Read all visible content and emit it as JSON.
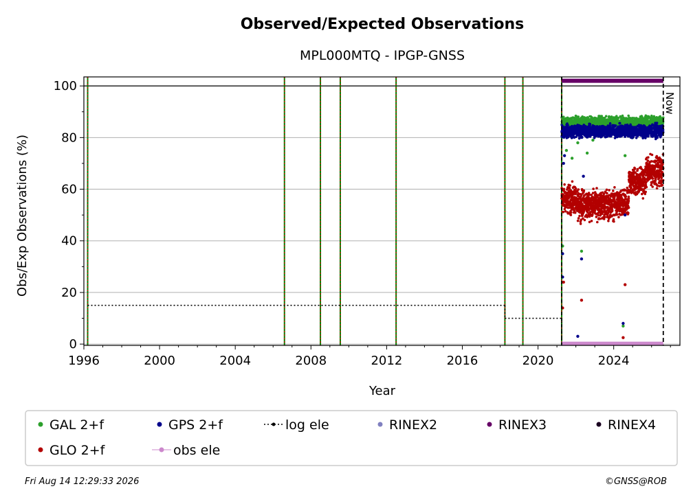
{
  "chart_data": {
    "type": "scatter",
    "title": "Observed/Expected Observations",
    "subtitle": "MPL000MTQ - IPGP-GNSS",
    "xlabel": "Year",
    "ylabel": "Obs/Exp Observations (%)",
    "xlim": [
      1996.0,
      2027.5
    ],
    "ylim": [
      -0.5,
      103.5
    ],
    "x_ticks": [
      "1996",
      "2000",
      "2004",
      "2008",
      "2012",
      "2016",
      "2020",
      "2024"
    ],
    "x_tick_values": [
      1996,
      2000,
      2004,
      2008,
      2012,
      2016,
      2020,
      2024
    ],
    "y_ticks": [
      "0",
      "20",
      "40",
      "60",
      "80",
      "100"
    ],
    "y_tick_values": [
      0,
      20,
      40,
      60,
      80,
      100
    ],
    "grid": "horizontal",
    "reference_line_y": 100,
    "now_label": "Now",
    "now_x": 2026.62,
    "data_start_x": 2021.25,
    "event_lines_x": [
      1996.2,
      2006.6,
      2008.5,
      2009.55,
      2012.5,
      2018.25,
      2019.2,
      2021.25
    ],
    "log_ele": [
      {
        "x_start": 1996.2,
        "x_end": 2018.25,
        "y": 15
      },
      {
        "x_start": 2018.25,
        "x_end": 2021.25,
        "y": 10
      },
      {
        "x_start": 2021.25,
        "x_end": 2021.25,
        "y": 0
      }
    ],
    "rinex3_bar": {
      "x_start": 2021.25,
      "x_end": 2026.62,
      "y": 102
    },
    "obs_ele_bar": {
      "x_start": 2021.25,
      "x_end": 2026.62,
      "y": 0
    },
    "series": [
      {
        "name": "GAL 2+f",
        "color": "#2ca02c",
        "segments": [
          {
            "x_start": 2021.25,
            "x_end": 2026.62,
            "mean": 86,
            "spread": 1.5
          }
        ],
        "dips": [
          [
            2021.3,
            38
          ],
          [
            2021.5,
            75
          ],
          [
            2021.8,
            72
          ],
          [
            2022.1,
            78
          ],
          [
            2022.3,
            36
          ],
          [
            2022.6,
            74
          ],
          [
            2022.9,
            79
          ],
          [
            2024.5,
            7
          ],
          [
            2024.6,
            73
          ],
          [
            2025.0,
            80
          ]
        ]
      },
      {
        "name": "GPS 2+f",
        "color": "#00008b",
        "segments": [
          {
            "x_start": 2021.25,
            "x_end": 2026.62,
            "mean": 82.5,
            "spread": 1.8
          }
        ],
        "dips": [
          [
            2021.3,
            26
          ],
          [
            2021.3,
            35
          ],
          [
            2021.35,
            70
          ],
          [
            2021.4,
            73
          ],
          [
            2022.1,
            3
          ],
          [
            2022.3,
            33
          ],
          [
            2022.4,
            65
          ],
          [
            2024.5,
            8
          ],
          [
            2024.6,
            50
          ]
        ]
      },
      {
        "name": "GLO 2+f",
        "color": "#b30000",
        "segments": [
          {
            "x_start": 2021.25,
            "x_end": 2022.0,
            "mean": 56,
            "spread": 4
          },
          {
            "x_start": 2022.0,
            "x_end": 2024.8,
            "mean": 54,
            "spread": 4
          },
          {
            "x_start": 2024.8,
            "x_end": 2025.7,
            "mean": 63,
            "spread": 4
          },
          {
            "x_start": 2025.7,
            "x_end": 2026.62,
            "mean": 67,
            "spread": 4
          }
        ],
        "dips": [
          [
            2021.3,
            14
          ],
          [
            2021.35,
            24
          ],
          [
            2022.3,
            17
          ],
          [
            2024.5,
            2.5
          ],
          [
            2024.6,
            23
          ]
        ]
      }
    ],
    "legend": {
      "placement": "bottom",
      "entries": [
        {
          "label": "GAL 2+f",
          "color": "#2ca02c",
          "marker": "dot"
        },
        {
          "label": "GPS 2+f",
          "color": "#00008b",
          "marker": "dot"
        },
        {
          "label": "log ele",
          "color": "#000000",
          "marker": "dotted-line"
        },
        {
          "label": "RINEX2",
          "color": "#8080c0",
          "marker": "dot"
        },
        {
          "label": "RINEX3",
          "color": "#660066",
          "marker": "dot"
        },
        {
          "label": "RINEX4",
          "color": "#1a0020",
          "marker": "dot"
        },
        {
          "label": "GLO 2+f",
          "color": "#b30000",
          "marker": "dot"
        },
        {
          "label": "obs ele",
          "color": "#cc88cc",
          "marker": "line-dot"
        }
      ]
    }
  },
  "footer": {
    "timestamp": "Fri Aug 14 12:29:33 2026",
    "credit": "©GNSS@ROB"
  }
}
